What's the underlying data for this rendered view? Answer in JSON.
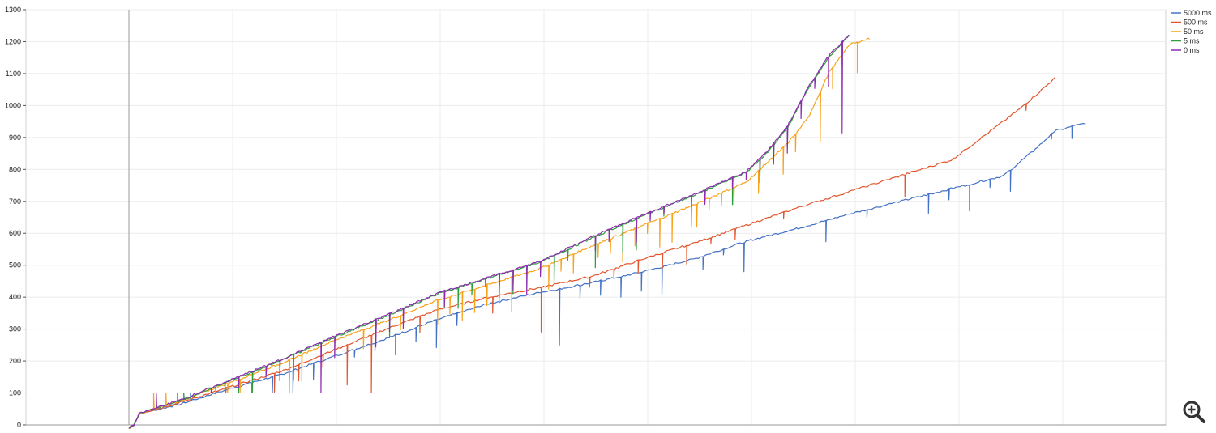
{
  "chart_data": {
    "type": "line",
    "title": "",
    "xlabel": "",
    "ylabel": "",
    "ylim": [
      0,
      1300
    ],
    "yticks": [
      0,
      100,
      200,
      300,
      400,
      500,
      600,
      700,
      800,
      900,
      1000,
      1100,
      1200,
      1300
    ],
    "xlim": [
      0,
      100
    ],
    "grid": true,
    "legend_position": "top-right",
    "series": [
      {
        "name": "5000 ms",
        "color": "#4472c4",
        "end": 90,
        "spike_every": 9,
        "spike_depth": 90,
        "points": [
          [
            0,
            -10
          ],
          [
            0.5,
            0
          ],
          [
            1,
            35
          ],
          [
            5,
            65
          ],
          [
            10,
            115
          ],
          [
            15,
            160
          ],
          [
            20,
            215
          ],
          [
            25,
            270
          ],
          [
            30,
            330
          ],
          [
            35,
            380
          ],
          [
            40,
            415
          ],
          [
            45,
            445
          ],
          [
            50,
            480
          ],
          [
            55,
            520
          ],
          [
            60,
            575
          ],
          [
            65,
            615
          ],
          [
            70,
            660
          ],
          [
            75,
            700
          ],
          [
            80,
            740
          ],
          [
            85,
            780
          ],
          [
            88,
            860
          ],
          [
            90,
            920
          ],
          [
            93,
            945
          ]
        ]
      },
      {
        "name": "500 ms",
        "color": "#e2562d",
        "end": 87,
        "spike_every": 11,
        "spike_depth": 80,
        "points": [
          [
            0,
            -10
          ],
          [
            0.5,
            0
          ],
          [
            1,
            35
          ],
          [
            5,
            70
          ],
          [
            10,
            120
          ],
          [
            15,
            170
          ],
          [
            20,
            235
          ],
          [
            25,
            300
          ],
          [
            30,
            360
          ],
          [
            35,
            400
          ],
          [
            40,
            430
          ],
          [
            45,
            465
          ],
          [
            50,
            520
          ],
          [
            55,
            570
          ],
          [
            60,
            625
          ],
          [
            65,
            680
          ],
          [
            70,
            730
          ],
          [
            75,
            780
          ],
          [
            80,
            830
          ],
          [
            85,
            950
          ],
          [
            87,
            1000
          ],
          [
            90,
            1085
          ]
        ]
      },
      {
        "name": "50 ms",
        "color": "#f7a21b",
        "end": 69,
        "spike_every": 7,
        "spike_depth": 110,
        "points": [
          [
            0,
            -10
          ],
          [
            0.5,
            0
          ],
          [
            1,
            35
          ],
          [
            5,
            75
          ],
          [
            10,
            135
          ],
          [
            15,
            195
          ],
          [
            20,
            265
          ],
          [
            25,
            325
          ],
          [
            30,
            390
          ],
          [
            35,
            440
          ],
          [
            40,
            490
          ],
          [
            45,
            560
          ],
          [
            50,
            625
          ],
          [
            55,
            690
          ],
          [
            60,
            760
          ],
          [
            62,
            820
          ],
          [
            64,
            880
          ],
          [
            66,
            960
          ],
          [
            68,
            1100
          ],
          [
            70,
            1190
          ],
          [
            72,
            1210
          ]
        ]
      },
      {
        "name": "5 ms",
        "color": "#2f9e3f",
        "end": 66,
        "spike_every": 8,
        "spike_depth": 100,
        "points": [
          [
            0,
            -10
          ],
          [
            0.5,
            0
          ],
          [
            1,
            35
          ],
          [
            5,
            75
          ],
          [
            10,
            140
          ],
          [
            15,
            205
          ],
          [
            20,
            275
          ],
          [
            25,
            340
          ],
          [
            30,
            410
          ],
          [
            35,
            460
          ],
          [
            40,
            510
          ],
          [
            45,
            585
          ],
          [
            50,
            655
          ],
          [
            55,
            720
          ],
          [
            60,
            790
          ],
          [
            62,
            850
          ],
          [
            64,
            930
          ],
          [
            66,
            1050
          ],
          [
            68,
            1150
          ],
          [
            70,
            1220
          ]
        ]
      },
      {
        "name": "0 ms",
        "color": "#8e2bb0",
        "end": 66,
        "spike_every": 8,
        "spike_depth": 95,
        "points": [
          [
            0,
            -10
          ],
          [
            0.5,
            0
          ],
          [
            1,
            35
          ],
          [
            5,
            78
          ],
          [
            10,
            142
          ],
          [
            15,
            207
          ],
          [
            20,
            278
          ],
          [
            25,
            343
          ],
          [
            30,
            412
          ],
          [
            35,
            462
          ],
          [
            40,
            513
          ],
          [
            45,
            588
          ],
          [
            50,
            658
          ],
          [
            55,
            723
          ],
          [
            60,
            793
          ],
          [
            62,
            855
          ],
          [
            64,
            935
          ],
          [
            66,
            1055
          ],
          [
            68,
            1155
          ],
          [
            70,
            1220
          ]
        ]
      }
    ]
  },
  "toolbar": {
    "zoom_icon": "zoom-in-icon"
  }
}
